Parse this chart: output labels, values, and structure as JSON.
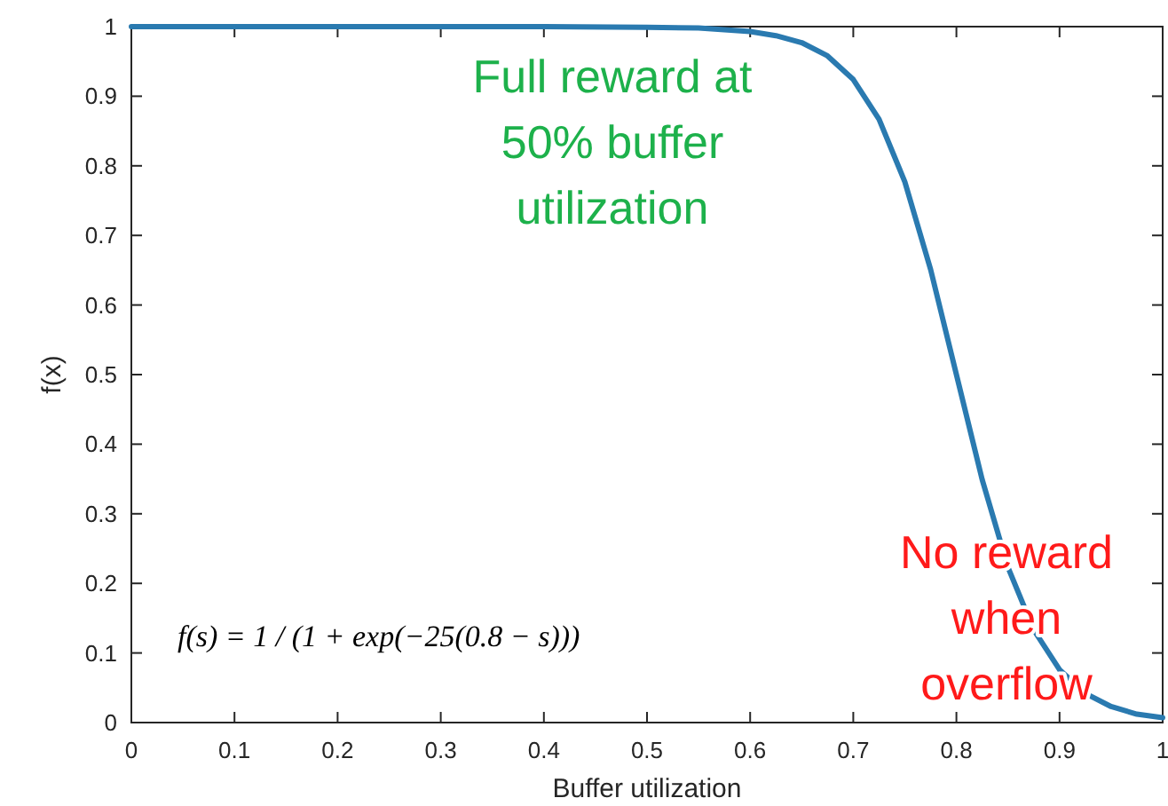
{
  "chart_data": {
    "type": "line",
    "xlabel": "Buffer utilization",
    "ylabel": "f(x)",
    "x": [
      0,
      0.1,
      0.2,
      0.3,
      0.4,
      0.5,
      0.55,
      0.6,
      0.625,
      0.65,
      0.675,
      0.7,
      0.725,
      0.75,
      0.775,
      0.8,
      0.825,
      0.85,
      0.875,
      0.9,
      0.925,
      0.95,
      0.975,
      1
    ],
    "series": [
      {
        "color": "#2a7ab0",
        "values": [
          1,
          1,
          1,
          1,
          1,
          0.999,
          0.998,
          0.993,
          0.987,
          0.977,
          0.958,
          0.924,
          0.867,
          0.777,
          0.651,
          0.5,
          0.349,
          0.223,
          0.133,
          0.076,
          0.042,
          0.023,
          0.012,
          0.007
        ]
      }
    ],
    "xlim": [
      0,
      1
    ],
    "ylim": [
      0,
      1
    ],
    "xticks": [
      0,
      0.1,
      0.2,
      0.3,
      0.4,
      0.5,
      0.6,
      0.7,
      0.8,
      0.9,
      1
    ],
    "yticks": [
      0,
      0.1,
      0.2,
      0.3,
      0.4,
      0.5,
      0.6,
      0.7,
      0.8,
      0.9,
      1
    ],
    "grid": false,
    "marker": "none",
    "line_style": "solid",
    "annotations": [
      "Full reward at 50% buffer utilization",
      "No reward when overflow",
      "f(s) = 1 / (1 + exp(−25(0.8 − s)))"
    ]
  }
}
